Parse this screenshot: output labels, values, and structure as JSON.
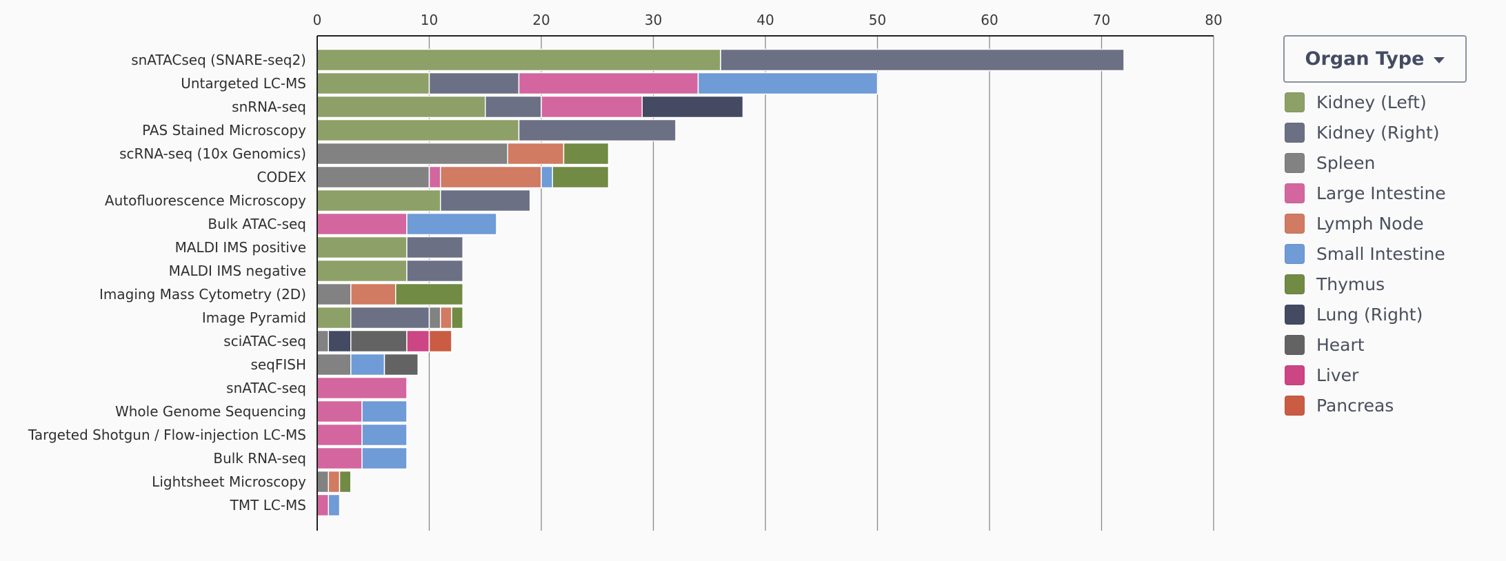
{
  "chart_data": {
    "type": "bar",
    "orientation": "horizontal",
    "stacked": true,
    "xlim": [
      0,
      80
    ],
    "xticks": [
      0,
      10,
      20,
      30,
      40,
      50,
      60,
      70,
      80
    ],
    "grid": "vertical",
    "legend_position": "right",
    "categories": [
      "snATACseq (SNARE-seq2)",
      "Untargeted LC-MS",
      "snRNA-seq",
      "PAS Stained Microscopy",
      "scRNA-seq (10x Genomics)",
      "CODEX",
      "Autofluorescence Microscopy",
      "Bulk ATAC-seq",
      "MALDI IMS positive",
      "MALDI IMS negative",
      "Imaging Mass Cytometry (2D)",
      "Image Pyramid",
      "sciATAC-seq",
      "seqFISH",
      "snATAC-seq",
      "Whole Genome Sequencing",
      "Targeted Shotgun / Flow-injection LC-MS",
      "Bulk RNA-seq",
      "Lightsheet Microscopy",
      "TMT LC-MS"
    ],
    "series": [
      {
        "name": "Kidney (Left)",
        "color": "#8da067",
        "values": [
          36,
          10,
          15,
          18,
          0,
          0,
          11,
          0,
          8,
          8,
          0,
          3,
          0,
          0,
          0,
          0,
          0,
          0,
          0,
          0
        ]
      },
      {
        "name": "Kidney (Right)",
        "color": "#6c7085",
        "values": [
          36,
          8,
          5,
          14,
          0,
          0,
          8,
          0,
          5,
          5,
          0,
          7,
          0,
          0,
          0,
          0,
          0,
          0,
          0,
          0
        ]
      },
      {
        "name": "Spleen",
        "color": "#828282",
        "values": [
          0,
          0,
          0,
          0,
          17,
          10,
          0,
          0,
          0,
          0,
          3,
          1,
          1,
          3,
          0,
          0,
          0,
          0,
          1,
          0
        ]
      },
      {
        "name": "Large Intestine",
        "color": "#d4669f",
        "values": [
          0,
          16,
          9,
          0,
          0,
          1,
          0,
          8,
          0,
          0,
          0,
          0,
          0,
          0,
          8,
          4,
          4,
          4,
          0,
          1
        ]
      },
      {
        "name": "Lymph Node",
        "color": "#d07b62",
        "values": [
          0,
          0,
          0,
          0,
          5,
          9,
          0,
          0,
          0,
          0,
          4,
          1,
          0,
          0,
          0,
          0,
          0,
          0,
          1,
          0
        ]
      },
      {
        "name": "Small Intestine",
        "color": "#6f9bd6",
        "values": [
          0,
          16,
          0,
          0,
          0,
          1,
          0,
          8,
          0,
          0,
          0,
          0,
          0,
          3,
          0,
          4,
          4,
          4,
          0,
          1
        ]
      },
      {
        "name": "Thymus",
        "color": "#718a44",
        "values": [
          0,
          0,
          0,
          0,
          4,
          5,
          0,
          0,
          0,
          0,
          6,
          1,
          0,
          0,
          0,
          0,
          0,
          0,
          1,
          0
        ]
      },
      {
        "name": "Lung (Right)",
        "color": "#454a63",
        "values": [
          0,
          0,
          9,
          0,
          0,
          0,
          0,
          0,
          0,
          0,
          0,
          0,
          2,
          0,
          0,
          0,
          0,
          0,
          0,
          0
        ]
      },
      {
        "name": "Heart",
        "color": "#636363",
        "values": [
          0,
          0,
          0,
          0,
          0,
          0,
          0,
          0,
          0,
          0,
          0,
          0,
          5,
          3,
          0,
          0,
          0,
          0,
          0,
          0
        ]
      },
      {
        "name": "Liver",
        "color": "#cc4584",
        "values": [
          0,
          0,
          0,
          0,
          0,
          0,
          0,
          0,
          0,
          0,
          0,
          0,
          2,
          0,
          0,
          0,
          0,
          0,
          0,
          0
        ]
      },
      {
        "name": "Pancreas",
        "color": "#c95c43",
        "values": [
          0,
          0,
          0,
          0,
          0,
          0,
          0,
          0,
          0,
          0,
          0,
          0,
          2,
          0,
          0,
          0,
          0,
          0,
          0,
          0
        ]
      }
    ]
  },
  "legend": {
    "button_label": "Organ Type",
    "button_icon": "caret-down-icon",
    "items": [
      {
        "label": "Kidney (Left)",
        "color": "#8da067"
      },
      {
        "label": "Kidney (Right)",
        "color": "#6c7085"
      },
      {
        "label": "Spleen",
        "color": "#828282"
      },
      {
        "label": "Large Intestine",
        "color": "#d4669f"
      },
      {
        "label": "Lymph Node",
        "color": "#d07b62"
      },
      {
        "label": "Small Intestine",
        "color": "#6f9bd6"
      },
      {
        "label": "Thymus",
        "color": "#718a44"
      },
      {
        "label": "Lung (Right)",
        "color": "#454a63"
      },
      {
        "label": "Heart",
        "color": "#636363"
      },
      {
        "label": "Liver",
        "color": "#cc4584"
      },
      {
        "label": "Pancreas",
        "color": "#c95c43"
      }
    ]
  }
}
